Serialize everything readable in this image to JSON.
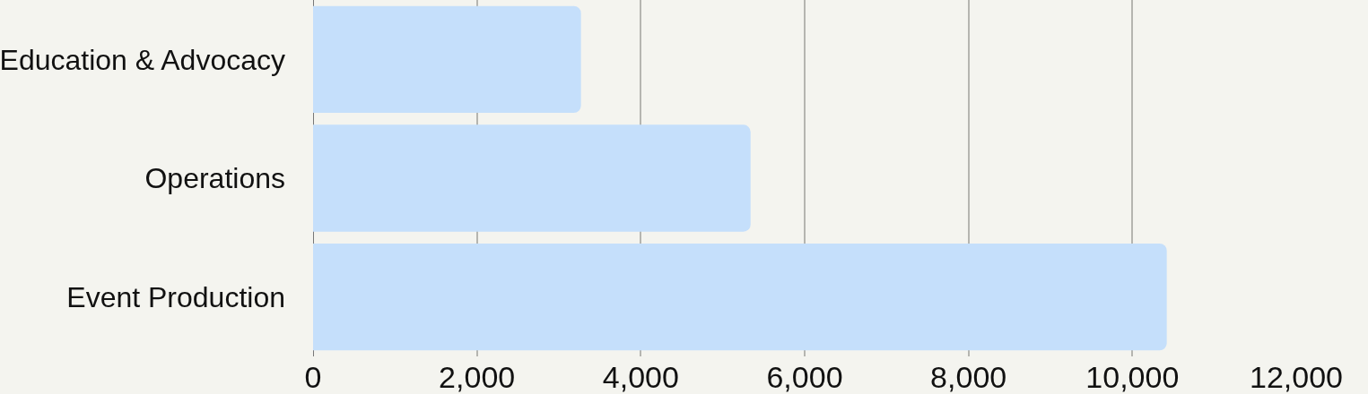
{
  "chart_data": {
    "type": "bar",
    "orientation": "horizontal",
    "categories": [
      "Education & Advocacy",
      "Operations",
      "Event Production"
    ],
    "values": [
      3270,
      5340,
      10420
    ],
    "color": "#c5dffb",
    "xlim": [
      0,
      12000
    ],
    "xticks": [
      {
        "value": 0,
        "label": "0"
      },
      {
        "value": 2000,
        "label": "2,000"
      },
      {
        "value": 4000,
        "label": "4,000"
      },
      {
        "value": 6000,
        "label": "6,000"
      },
      {
        "value": 8000,
        "label": "8,000"
      },
      {
        "value": 10000,
        "label": "10,000"
      },
      {
        "value": 12000,
        "label": "12,000"
      }
    ],
    "grid": "x",
    "legend": false
  }
}
